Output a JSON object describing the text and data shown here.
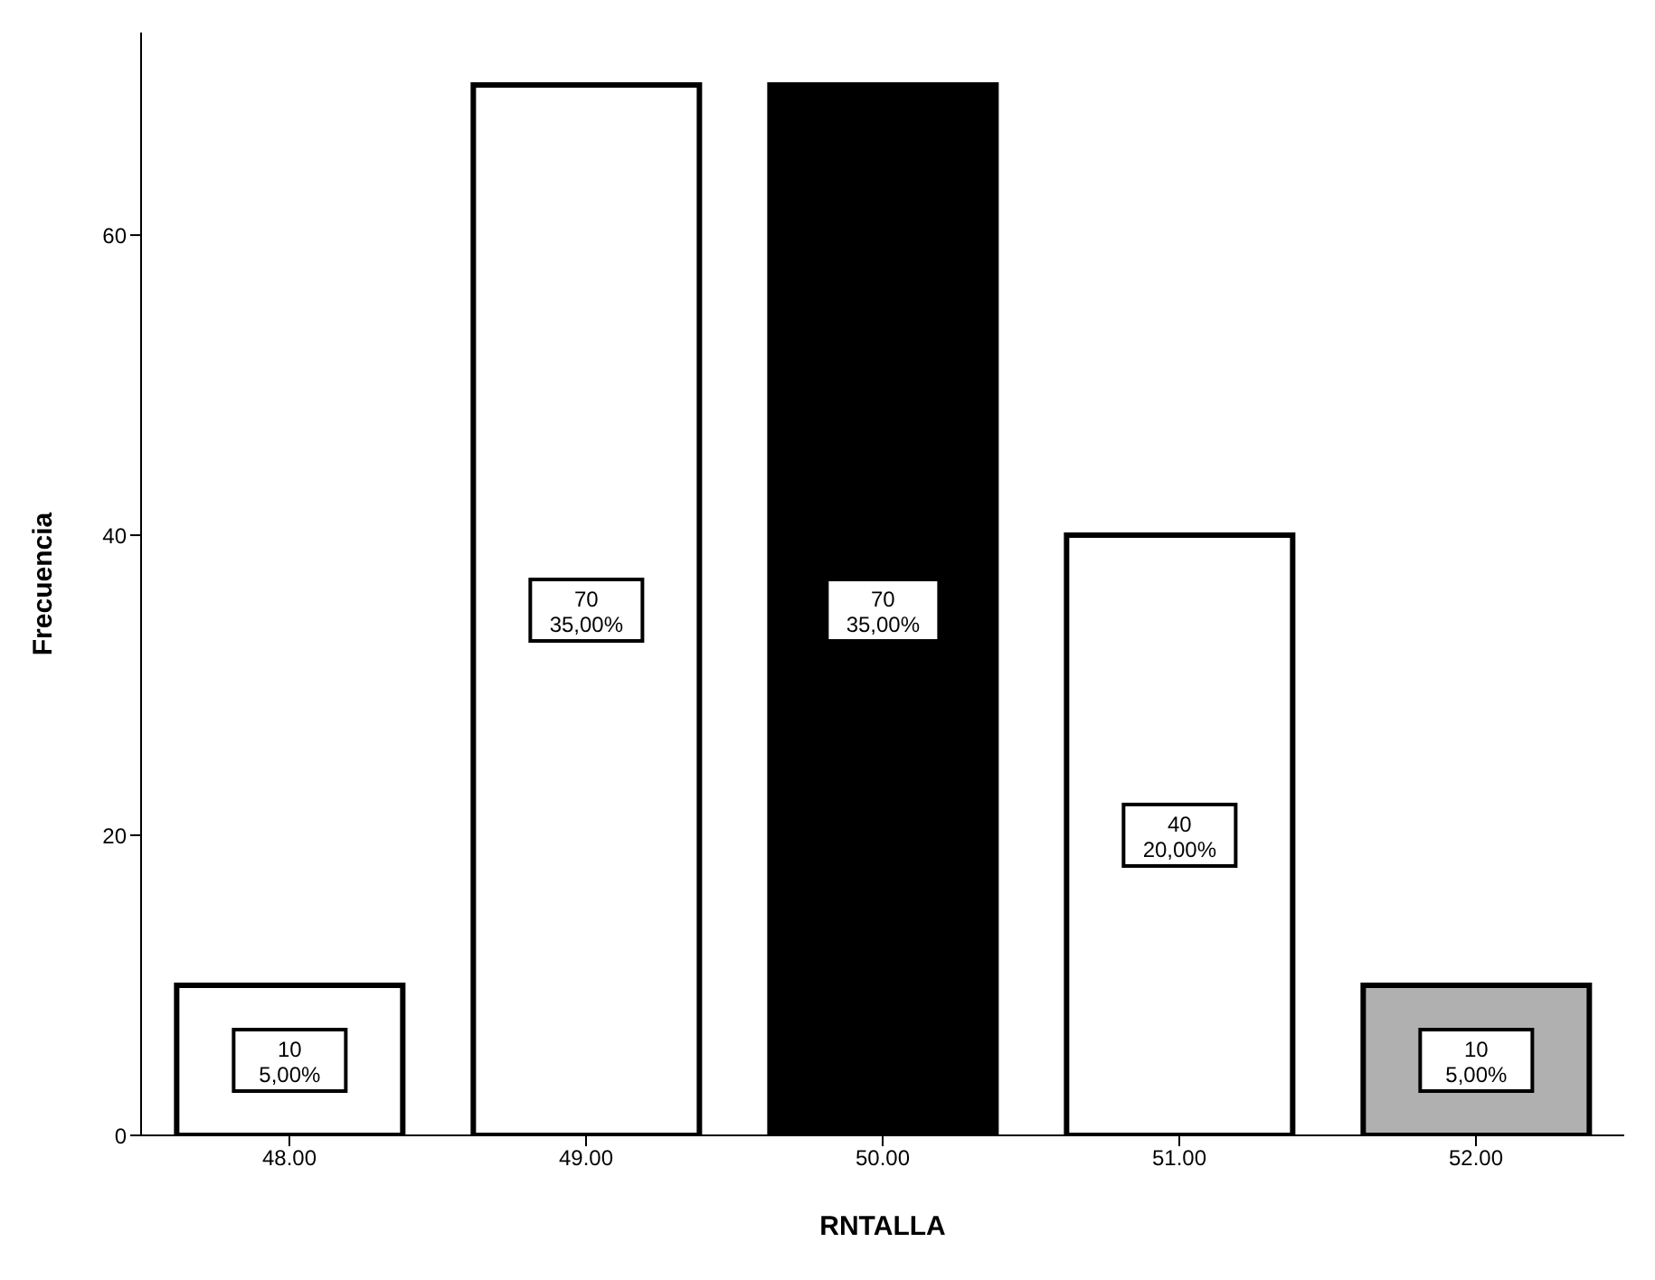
{
  "chart_data": {
    "type": "bar",
    "xlabel": "RNTALLA",
    "ylabel": "Frecuencia",
    "categories": [
      "48.00",
      "49.00",
      "50.00",
      "51.00",
      "52.00"
    ],
    "values": [
      10,
      70,
      70,
      40,
      10
    ],
    "colors": [
      "#ffffff",
      "#ffffff",
      "#000000",
      "#ffffff",
      "#b0b0b0"
    ],
    "value_labels": [
      "10\n5,00%",
      "70\n35,00%",
      "70\n35,00%",
      "40\n20,00%",
      "10\n5,00%"
    ],
    "ylim": [
      0,
      73.5
    ],
    "yticks": [
      0,
      20,
      40,
      60
    ],
    "grid": false,
    "legend": false
  }
}
